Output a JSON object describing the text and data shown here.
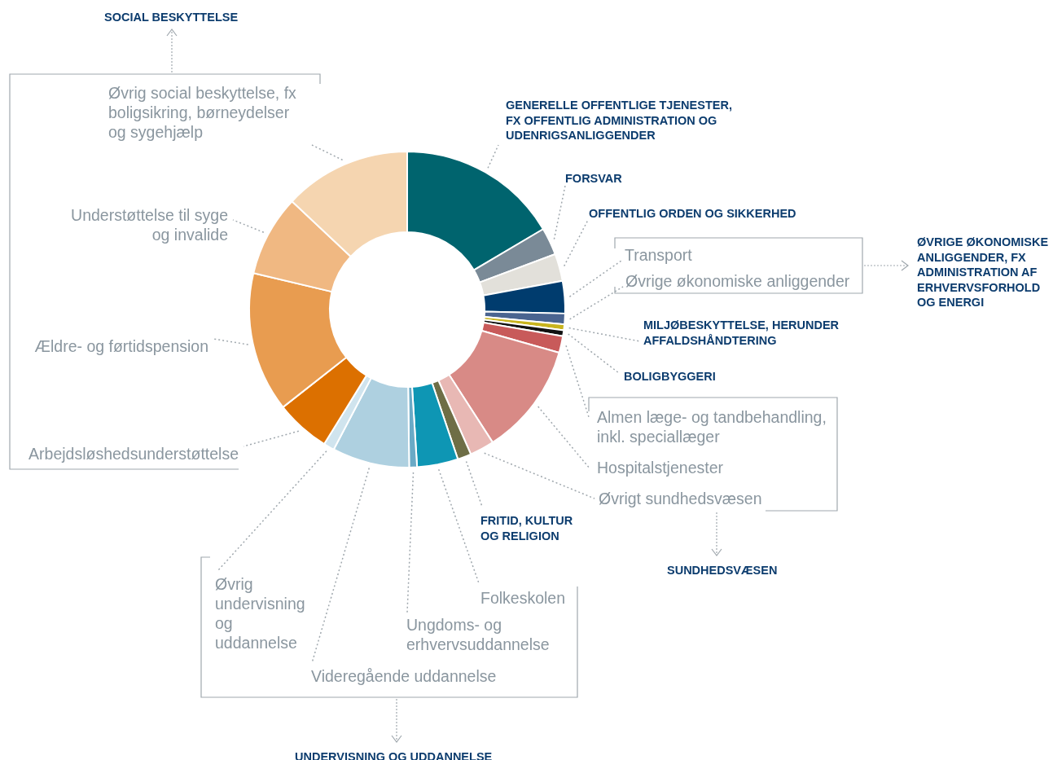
{
  "chart_data": {
    "type": "donut",
    "categories": [
      "GENERELLE OFFENTLIGE TJENESTER, FX OFFENTLIG ADMINISTRATION OG UDENRIGSANLIGGENDER",
      "FORSVAR",
      "OFFENTLIG ORDEN OG SIKKERHED",
      "Transport",
      "Øvrige økonomiske anliggender",
      "MILJØBESKYTTELSE, HERUNDER AFFALDSHÅNDTERING",
      "BOLIGBYGGERI",
      "Almen læge- og tandbehandling, inkl. speciallæger",
      "Hospitalstjenester",
      "Øvrigt sundhedsvæsen",
      "FRITID, KULTUR OG RELIGION",
      "Folkeskolen",
      "Ungdoms- og erhvervsuddannelse",
      "Videregående uddannelse",
      "Øvrig undervisning og uddannelse",
      "Arbejdsløshedsunderstøttelse",
      "Ældre- og førtidspension",
      "Understøttelse til syge og invalide",
      "Øvrig social beskyttelse, fx boligsikring, børneydelser og sygehjælp"
    ],
    "values": [
      16.5,
      2.8,
      2.8,
      3.3,
      1.1,
      0.6,
      0.6,
      1.7,
      11.5,
      2.5,
      1.4,
      4.2,
      0.8,
      7.9,
      1.1,
      5.6,
      14.3,
      8.3,
      13.0
    ],
    "colors": [
      "#00646e",
      "#7a8a97",
      "#e2e0da",
      "#003c6e",
      "#4a6490",
      "#c8b41e",
      "#111111",
      "#c85a5a",
      "#d88a86",
      "#e8b8b4",
      "#6e6e46",
      "#0e96b4",
      "#6aaac6",
      "#aed0e0",
      "#d0e4ee",
      "#dc7000",
      "#e89c50",
      "#f0b882",
      "#f5d5b0"
    ],
    "annotations": [
      "SOCIAL BESKYTTELSE",
      "ØVRIGE ØKONOMISKE ANLIGGENDER, FX ADMINISTRATION AF ERHVERVSFORHOLD OG ENERGI",
      "SUNDHEDSVÆSEN",
      "UNDERVISNING OG UDDANNELSE"
    ],
    "legend": false
  }
}
